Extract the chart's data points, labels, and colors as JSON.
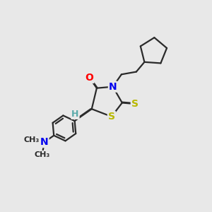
{
  "background_color": "#e8e8e8",
  "line_color": "#2a2a2a",
  "bond_width": 1.6,
  "atom_colors": {
    "O": "#ff0000",
    "N": "#0000ee",
    "S": "#b8b800",
    "H": "#5aaaaa",
    "C": "#2a2a2a"
  },
  "font_size_atom": 10,
  "font_size_h": 9,
  "font_size_me": 8
}
